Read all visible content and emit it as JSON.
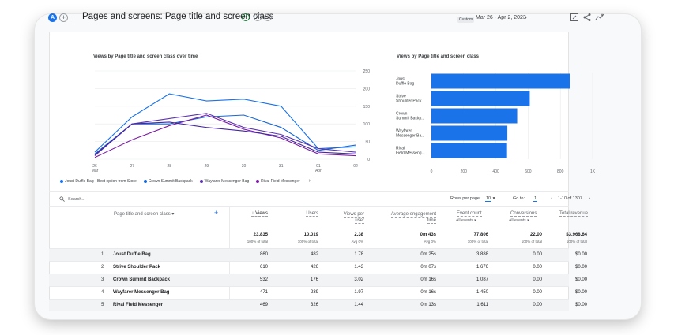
{
  "header": {
    "avatar_letter": "A",
    "add_symbol": "+",
    "title": "Pages and screens: Page title and screen class",
    "check_symbol": "✓",
    "dropdown_symbol": "▾",
    "date_badge": "Custom",
    "date_range": "Mar 26 - Apr 2, 2023",
    "date_caret": "▾"
  },
  "line_chart": {
    "title": "Views by Page title and screen class over time"
  },
  "bar_chart": {
    "title": "Views by Page title and screen class"
  },
  "legend": {
    "items": [
      {
        "label": "Joust Duffle Bag - Best option from Store",
        "color": "#1a73e8"
      },
      {
        "label": "Crown Summit Backpack",
        "color": "#1967d2"
      },
      {
        "label": "Wayfarer Messenger Bag",
        "color": "#5e35b1"
      },
      {
        "label": "Rival Field Messenger",
        "color": "#7b1fa2"
      }
    ],
    "next_arrow": "›"
  },
  "chart_data": [
    {
      "type": "line",
      "x": [
        "26 Mar",
        "27",
        "28",
        "29",
        "30",
        "31",
        "01 Apr",
        "02"
      ],
      "ylim": [
        0,
        250
      ],
      "yticks": [
        0,
        50,
        100,
        150,
        200,
        250
      ],
      "grid": true,
      "series": [
        {
          "name": "Joust Duffle Bag - Best option from Store",
          "color": "#1a73e8",
          "values": [
            20,
            120,
            185,
            165,
            170,
            150,
            30,
            35
          ]
        },
        {
          "name": "Crown Summit Backpack",
          "color": "#1967d2",
          "values": [
            15,
            100,
            100,
            120,
            125,
            90,
            25,
            40
          ]
        },
        {
          "name": "Wayfarer Messenger Bag",
          "color": "#5e35b1",
          "values": [
            10,
            100,
            115,
            130,
            90,
            70,
            30,
            20
          ]
        },
        {
          "name": "Rival Field Messenger",
          "color": "#7b1fa2",
          "values": [
            5,
            55,
            95,
            125,
            85,
            60,
            15,
            10
          ]
        },
        {
          "name": "",
          "color": "#4527a0",
          "values": [
            12,
            100,
            105,
            90,
            80,
            65,
            20,
            15
          ]
        }
      ]
    },
    {
      "type": "bar",
      "orientation": "horizontal",
      "categories": [
        "Joust Duffle Bag",
        "Strive Shoulder Pack",
        "Crown Summit Backp...",
        "Wayfarer Messenger Ba...",
        "Rival Field Messeng..."
      ],
      "values": [
        860,
        610,
        532,
        471,
        469
      ],
      "xlim": [
        0,
        1000
      ],
      "xticks": [
        "0",
        "200",
        "400",
        "600",
        "800",
        "1K"
      ],
      "color": "#1a73e8",
      "grid": true
    }
  ],
  "table": {
    "search_placeholder": "Search...",
    "rows_per_page_label": "Rows per page:",
    "rows_per_page": "10",
    "goto_label": "Go to:",
    "goto_value": "1",
    "range_label": "1-10 of 1307",
    "prev_symbol": "‹",
    "next_symbol": "›",
    "dim_header": "Page title and screen class",
    "dim_plus": "+",
    "columns": [
      {
        "label": "↓ Views",
        "total": "23,835",
        "sub": "100% of total"
      },
      {
        "label": "Users",
        "total": "10,019",
        "sub": "100% of total"
      },
      {
        "label": "Views per user",
        "total": "2.38",
        "sub": "Avg 0%"
      },
      {
        "label": "Average engagement time",
        "total": "0m 43s",
        "sub": "Avg 0%"
      },
      {
        "label": "Event count",
        "extra": "All events ▾",
        "total": "77,806",
        "sub": "100% of total"
      },
      {
        "label": "Conversions",
        "extra": "All events ▾",
        "total": "22.00",
        "sub": "100% of total"
      },
      {
        "label": "Total revenue",
        "total": "$3,968.64",
        "sub": "100% of total"
      }
    ],
    "rows": [
      {
        "n": "1",
        "name": "Joust Duffle Bag",
        "views": "860",
        "users": "482",
        "vpu": "1.78",
        "eng": "0m 25s",
        "events": "3,888",
        "conv": "0.00",
        "rev": "$0.00"
      },
      {
        "n": "2",
        "name": "Strive Shoulder Pack",
        "views": "610",
        "users": "426",
        "vpu": "1.43",
        "eng": "0m 07s",
        "events": "1,676",
        "conv": "0.00",
        "rev": "$0.00"
      },
      {
        "n": "3",
        "name": "Crown Summit Backpack",
        "views": "532",
        "users": "176",
        "vpu": "3.02",
        "eng": "0m 16s",
        "events": "1,087",
        "conv": "0.00",
        "rev": "$0.00"
      },
      {
        "n": "4",
        "name": "Wayfarer Messenger Bag",
        "views": "471",
        "users": "239",
        "vpu": "1.97",
        "eng": "0m 16s",
        "events": "1,450",
        "conv": "0.00",
        "rev": "$0.00"
      },
      {
        "n": "5",
        "name": "Rival Field Messenger",
        "views": "469",
        "users": "326",
        "vpu": "1.44",
        "eng": "0m 13s",
        "events": "1,611",
        "conv": "0.00",
        "rev": "$0.00"
      }
    ]
  }
}
